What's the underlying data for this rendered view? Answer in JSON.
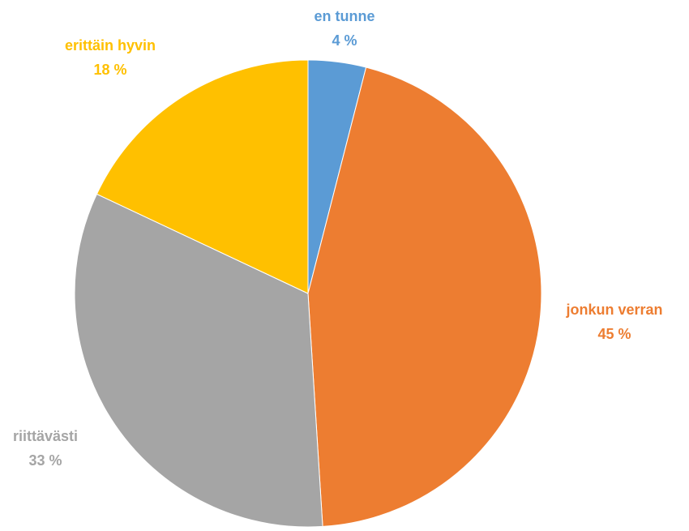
{
  "chart_data": {
    "type": "pie",
    "title": "",
    "legend": "none",
    "slices": [
      {
        "label": "en tunne",
        "value": 4,
        "value_label": "4 %",
        "color": "#5B9BD5"
      },
      {
        "label": "jonkun verran",
        "value": 45,
        "value_label": "45 %",
        "color": "#ED7D31"
      },
      {
        "label": "riittävästi",
        "value": 33,
        "value_label": "33 %",
        "color": "#A5A5A5"
      },
      {
        "label": "erittäin hyvin",
        "value": 18,
        "value_label": "18 %",
        "color": "#FFC000"
      }
    ]
  }
}
